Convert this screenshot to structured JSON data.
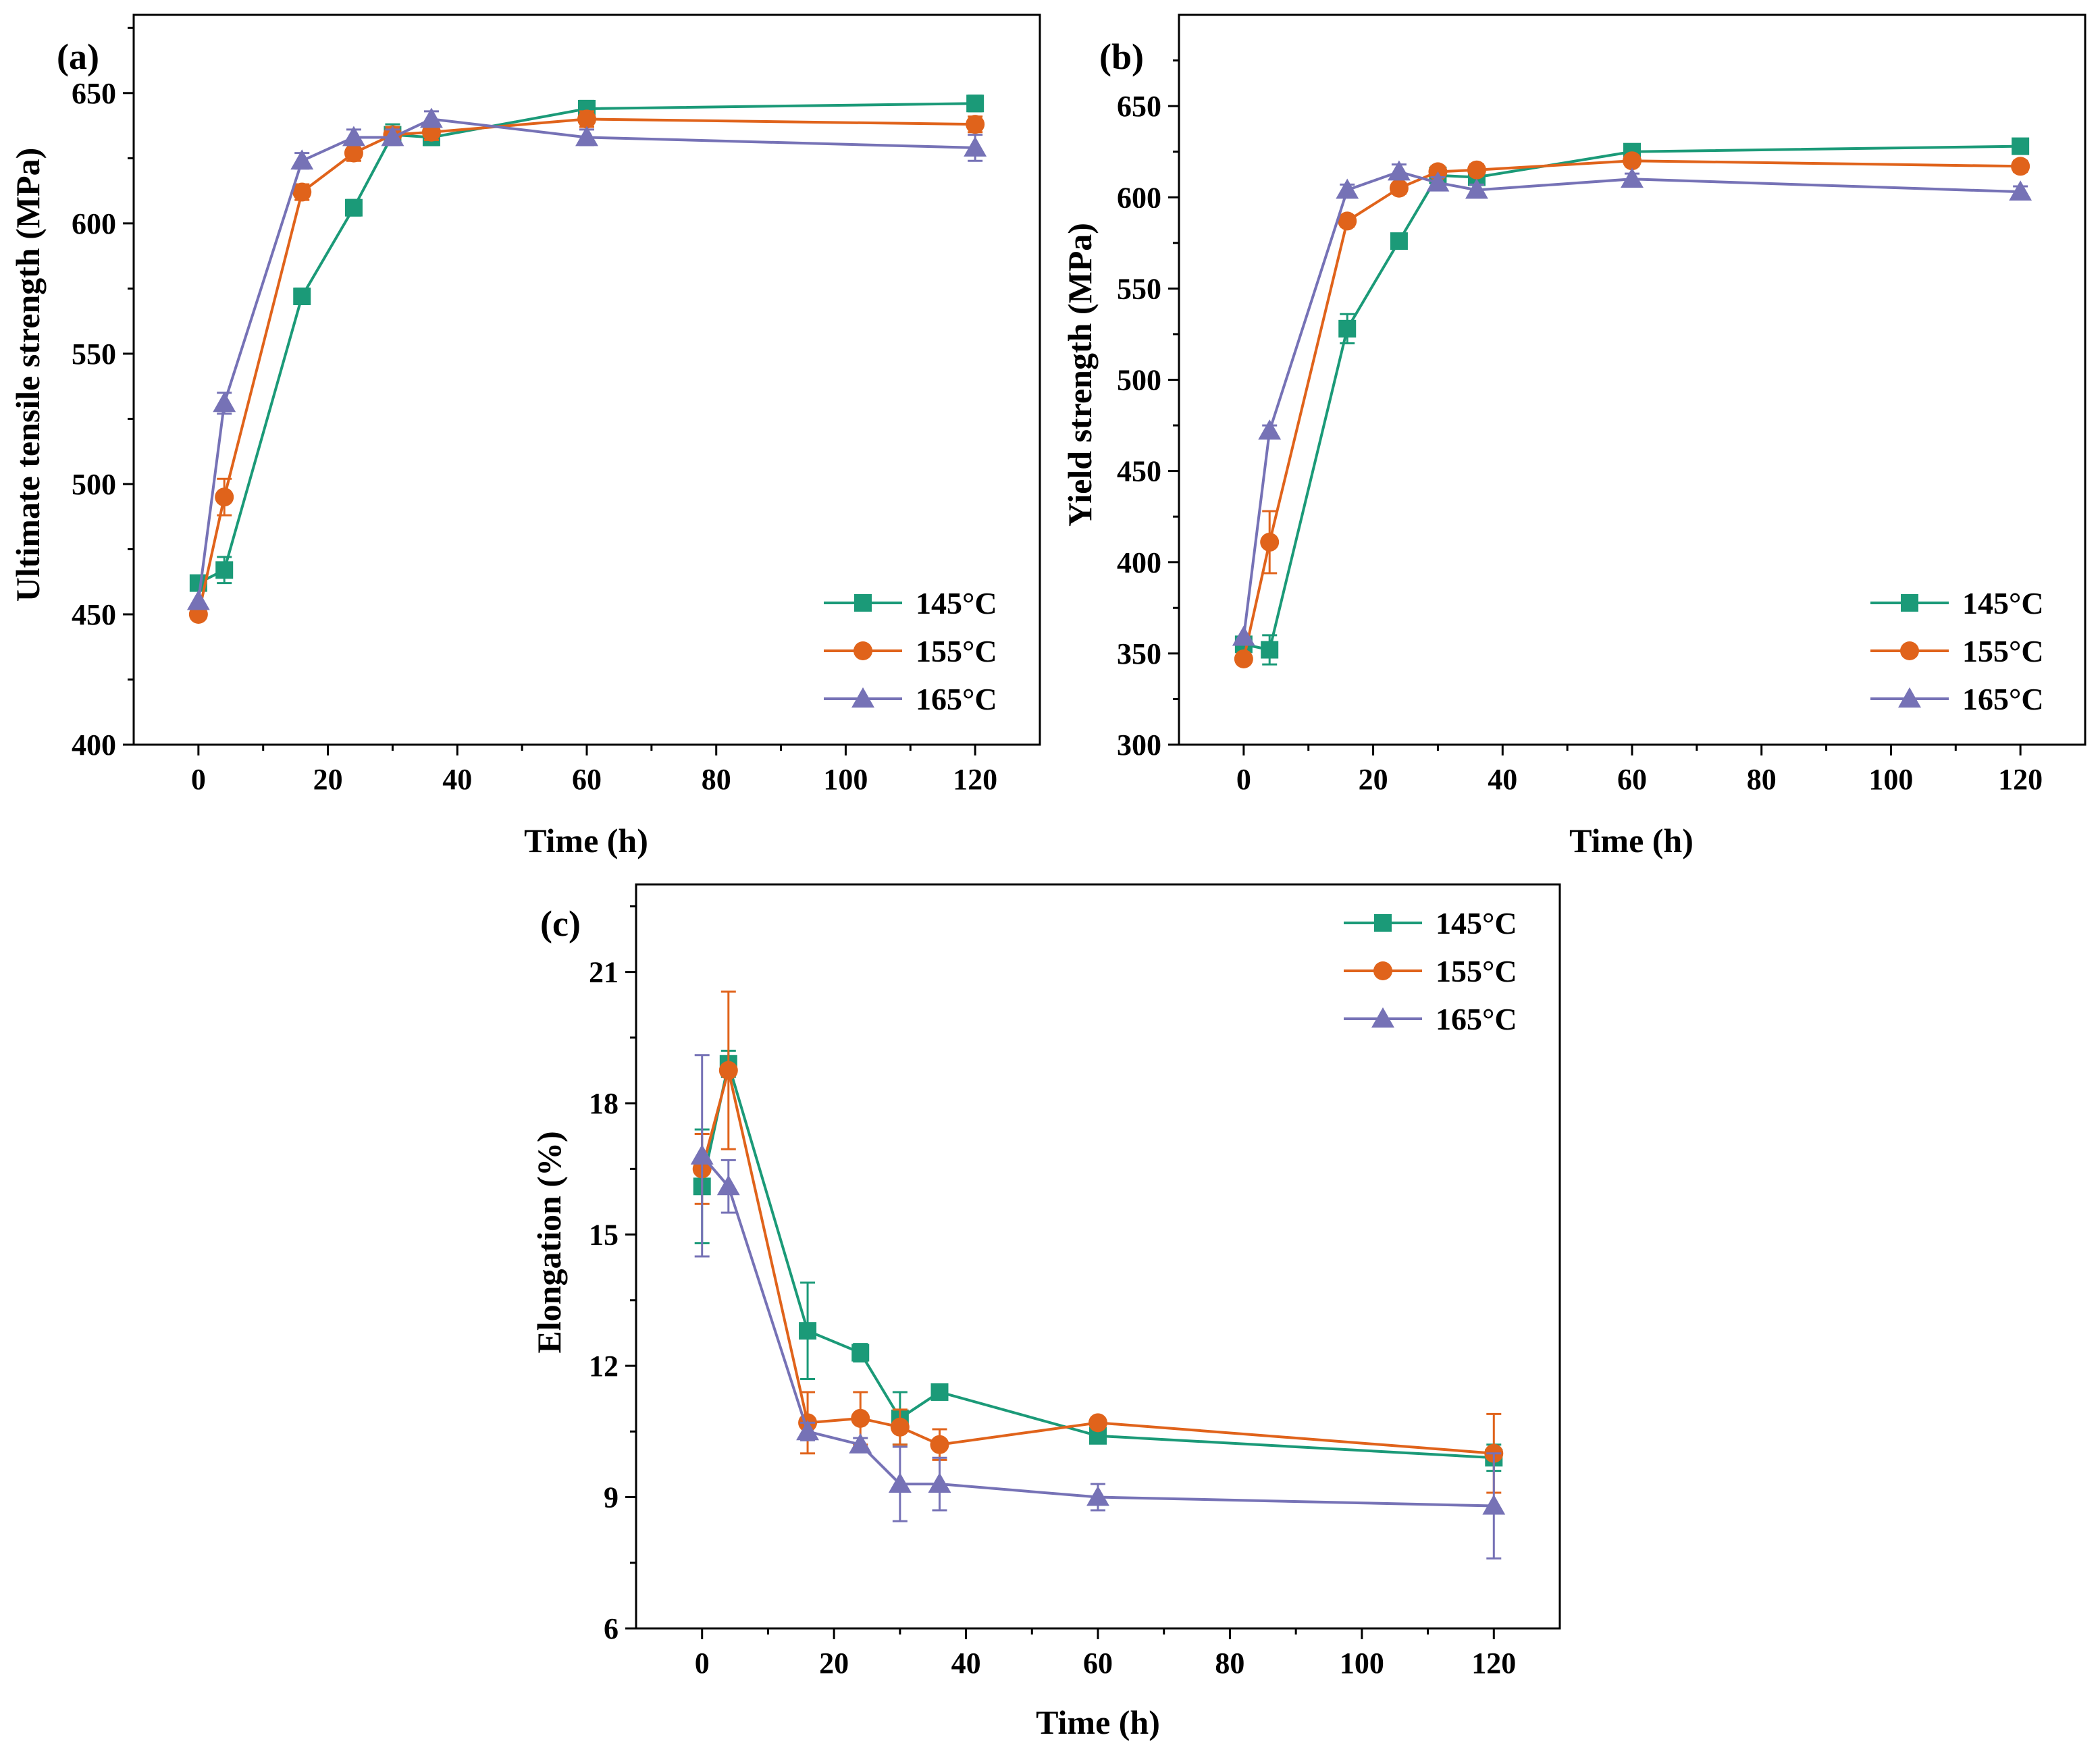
{
  "colors": {
    "series_145": "#1b9a78",
    "series_155": "#e0631b",
    "series_165": "#7672b6",
    "axis": "#000000",
    "background": "#ffffff"
  },
  "chart_data": [
    {
      "panel": "(a)",
      "type": "line",
      "xlabel": "Time (h)",
      "ylabel": "Ultimate tensile strength (MPa)",
      "xlim": [
        -10,
        130
      ],
      "ylim": [
        400,
        680
      ],
      "xticks": [
        0,
        20,
        40,
        60,
        80,
        100,
        120
      ],
      "yticks": [
        400,
        450,
        500,
        550,
        600,
        650
      ],
      "grid": false,
      "legend": "bottom-right",
      "series": [
        {
          "name": "145°C",
          "marker": "square",
          "x": [
            0,
            4,
            16,
            24,
            30,
            36,
            60,
            120
          ],
          "y": [
            462,
            467,
            572,
            606,
            634,
            633,
            644,
            646
          ],
          "err": [
            0,
            5,
            3,
            3,
            4,
            3,
            3,
            3
          ]
        },
        {
          "name": "155°C",
          "marker": "circle",
          "x": [
            0,
            4,
            16,
            24,
            30,
            36,
            60,
            120
          ],
          "y": [
            450,
            495,
            612,
            627,
            634,
            635,
            640,
            638
          ],
          "err": [
            0,
            7,
            3,
            3,
            3,
            3,
            3,
            3
          ]
        },
        {
          "name": "165°C",
          "marker": "triangle",
          "x": [
            0,
            4,
            16,
            24,
            30,
            36,
            60,
            120
          ],
          "y": [
            455,
            531,
            624,
            633,
            633,
            640,
            633,
            629
          ],
          "err": [
            0,
            4,
            3,
            3,
            3,
            3,
            3,
            5
          ]
        }
      ]
    },
    {
      "panel": "(b)",
      "type": "line",
      "xlabel": "Time (h)",
      "ylabel": "Yield strength (MPa)",
      "xlim": [
        -10,
        130
      ],
      "ylim": [
        300,
        700
      ],
      "xticks": [
        0,
        20,
        40,
        60,
        80,
        100,
        120
      ],
      "yticks": [
        300,
        350,
        400,
        450,
        500,
        550,
        600,
        650
      ],
      "grid": false,
      "legend": "bottom-right",
      "series": [
        {
          "name": "145°C",
          "marker": "square",
          "x": [
            0,
            4,
            16,
            24,
            30,
            36,
            60,
            120
          ],
          "y": [
            355,
            352,
            528,
            576,
            612,
            611,
            625,
            628
          ],
          "err": [
            0,
            8,
            8,
            4,
            3,
            3,
            3,
            3
          ]
        },
        {
          "name": "155°C",
          "marker": "circle",
          "x": [
            0,
            4,
            16,
            24,
            30,
            36,
            60,
            120
          ],
          "y": [
            347,
            411,
            587,
            605,
            614,
            615,
            620,
            617
          ],
          "err": [
            0,
            17,
            3,
            3,
            3,
            3,
            3,
            3
          ]
        },
        {
          "name": "165°C",
          "marker": "triangle",
          "x": [
            0,
            4,
            16,
            24,
            30,
            36,
            60,
            120
          ],
          "y": [
            359,
            472,
            604,
            614,
            608,
            604,
            610,
            603
          ],
          "err": [
            0,
            3,
            3,
            4,
            3,
            3,
            3,
            3
          ]
        }
      ]
    },
    {
      "panel": "(c)",
      "type": "line",
      "xlabel": "Time (h)",
      "ylabel": "Elongation (%)",
      "xlim": [
        -10,
        130
      ],
      "ylim": [
        6,
        23
      ],
      "xticks": [
        0,
        20,
        40,
        60,
        80,
        100,
        120
      ],
      "yticks": [
        6,
        9,
        12,
        15,
        18,
        21
      ],
      "grid": false,
      "legend": "top-right",
      "series": [
        {
          "name": "145°C",
          "marker": "square",
          "x": [
            0,
            4,
            16,
            24,
            30,
            36,
            60,
            120
          ],
          "y": [
            16.1,
            18.9,
            12.8,
            12.3,
            10.8,
            11.4,
            10.4,
            9.9
          ],
          "err": [
            1.3,
            0.3,
            1.1,
            0.2,
            0.6,
            0.1,
            0.15,
            0.3
          ]
        },
        {
          "name": "155°C",
          "marker": "circle",
          "x": [
            0,
            4,
            16,
            24,
            30,
            36,
            60,
            120
          ],
          "y": [
            16.5,
            18.75,
            10.7,
            10.8,
            10.6,
            10.2,
            10.7,
            10.0
          ],
          "err": [
            0.8,
            1.8,
            0.7,
            0.6,
            0.4,
            0.35,
            0.1,
            0.9
          ]
        },
        {
          "name": "165°C",
          "marker": "triangle",
          "x": [
            0,
            4,
            16,
            24,
            30,
            36,
            60,
            120
          ],
          "y": [
            16.8,
            16.1,
            10.5,
            10.2,
            9.3,
            9.3,
            9.0,
            8.8
          ],
          "err": [
            2.3,
            0.6,
            0.2,
            0.15,
            0.85,
            0.6,
            0.3,
            1.2
          ]
        }
      ]
    }
  ]
}
